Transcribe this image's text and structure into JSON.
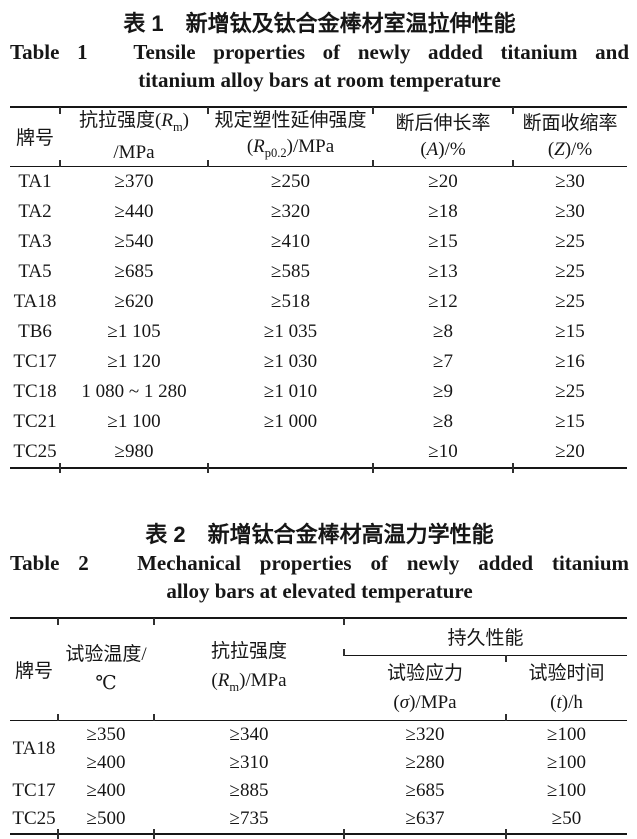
{
  "page": {
    "background": "#ffffff",
    "text_color": "#161616"
  },
  "table1": {
    "caption_zh": "表 1　新增钛及钛合金棒材室温拉伸性能",
    "caption_en_line1": "Table 1　Tensile properties of newly added titanium and",
    "caption_en_line2": "titanium alloy bars at room temperature",
    "header": {
      "grade": "牌号",
      "rm_l1": "抗拉强度(<i>R</i><sub>m</sub>)",
      "rm_l2": "/MPa",
      "rp_l1": "规定塑性延伸强度",
      "rp_l2": "(<i>R</i><sub>p0.2</sub>)/MPa",
      "a_l1": "断后伸长率",
      "a_l2": "(<i>A</i>)/%",
      "z_l1": "断面收缩率",
      "z_l2": "(<i>Z</i>)/%"
    },
    "rows": [
      {
        "grade": "TA1",
        "rm": "≥370",
        "rp": "≥250",
        "a": "≥20",
        "z": "≥30"
      },
      {
        "grade": "TA2",
        "rm": "≥440",
        "rp": "≥320",
        "a": "≥18",
        "z": "≥30"
      },
      {
        "grade": "TA3",
        "rm": "≥540",
        "rp": "≥410",
        "a": "≥15",
        "z": "≥25"
      },
      {
        "grade": "TA5",
        "rm": "≥685",
        "rp": "≥585",
        "a": "≥13",
        "z": "≥25"
      },
      {
        "grade": "TA18",
        "rm": "≥620",
        "rp": "≥518",
        "a": "≥12",
        "z": "≥25"
      },
      {
        "grade": "TB6",
        "rm": "≥1 105",
        "rp": "≥1 035",
        "a": "≥8",
        "z": "≥15"
      },
      {
        "grade": "TC17",
        "rm": "≥1 120",
        "rp": "≥1 030",
        "a": "≥7",
        "z": "≥16"
      },
      {
        "grade": "TC18",
        "rm": "1 080 ~ 1 280",
        "rp": "≥1 010",
        "a": "≥9",
        "z": "≥25"
      },
      {
        "grade": "TC21",
        "rm": "≥1 100",
        "rp": "≥1 000",
        "a": "≥8",
        "z": "≥15"
      },
      {
        "grade": "TC25",
        "rm": "≥980",
        "rp": "",
        "a": "≥10",
        "z": "≥20"
      }
    ]
  },
  "table2": {
    "caption_zh": "表 2　新增钛合金棒材高温力学性能",
    "caption_en_line1": "Table 2　Mechanical properties of newly added titanium",
    "caption_en_line2": "alloy bars at elevated temperature",
    "header": {
      "grade": "牌号",
      "temp_l1": "试验温度/",
      "temp_l2": "℃",
      "rm_l1": "抗拉强度",
      "rm_l2": "(<i>R</i><sub>m</sub>)/MPa",
      "group": "持久性能",
      "stress_l1": "试验应力",
      "stress_l2": "(<i>σ</i>)/MPa",
      "time_l1": "试验时间",
      "time_l2": "(<i>t</i>)/h"
    },
    "rows": [
      {
        "grade": "TA18",
        "temp": "≥350",
        "rm": "≥340",
        "stress": "≥320",
        "time": "≥100"
      },
      {
        "grade": "",
        "temp": "≥400",
        "rm": "≥310",
        "stress": "≥280",
        "time": "≥100"
      },
      {
        "grade": "TC17",
        "temp": "≥400",
        "rm": "≥885",
        "stress": "≥685",
        "time": "≥100"
      },
      {
        "grade": "TC25",
        "temp": "≥500",
        "rm": "≥735",
        "stress": "≥637",
        "time": "≥50"
      }
    ]
  }
}
